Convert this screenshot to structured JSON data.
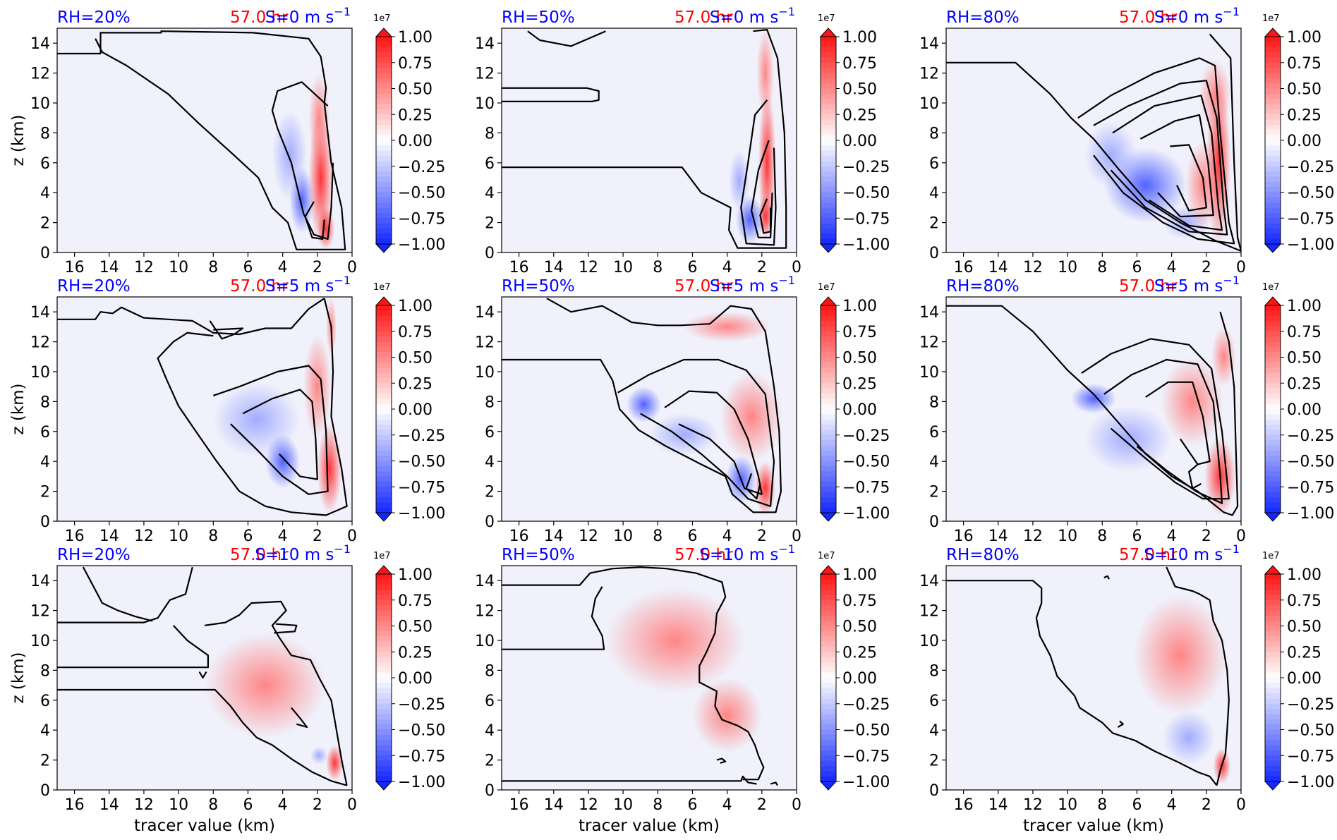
{
  "figure": {
    "type": "panel-grid",
    "time_label": "57.0 hr",
    "x_axis_label": "tracer value (km)",
    "y_axis_label": "z (km)",
    "colorbar_offset": "1e7",
    "colors": {
      "label_blue": "#0000ff",
      "label_red": "#ff0000",
      "background_fill": "#f0f1fb",
      "contour": "#000000"
    }
  },
  "chart_data": [
    {
      "type": "heatmap",
      "row": 0,
      "col": 0,
      "rh": "RH=20%",
      "time": "57.0 hr",
      "shear": "S=0 m s",
      "sup": "−1",
      "xlim": [
        17,
        0
      ],
      "ylim": [
        0,
        15
      ],
      "colorbar_range": [
        -1.0,
        1.0
      ]
    },
    {
      "type": "heatmap",
      "row": 0,
      "col": 1,
      "rh": "RH=50%",
      "time": "57.0 hr",
      "shear": "S=0 m s",
      "sup": "−1",
      "xlim": [
        17,
        0
      ],
      "ylim": [
        0,
        15
      ],
      "colorbar_range": [
        -1.0,
        1.0
      ]
    },
    {
      "type": "heatmap",
      "row": 0,
      "col": 2,
      "rh": "RH=80%",
      "time": "57.0 hr",
      "shear": "S=0 m s",
      "sup": "−1",
      "xlim": [
        17,
        0
      ],
      "ylim": [
        0,
        15
      ],
      "colorbar_range": [
        -1.0,
        1.0
      ]
    },
    {
      "type": "heatmap",
      "row": 1,
      "col": 0,
      "rh": "RH=20%",
      "time": "57.0 hr",
      "shear": "S=5 m s",
      "sup": "−1",
      "xlim": [
        17,
        0
      ],
      "ylim": [
        0,
        15
      ],
      "colorbar_range": [
        -1.0,
        1.0
      ]
    },
    {
      "type": "heatmap",
      "row": 1,
      "col": 1,
      "rh": "RH=50%",
      "time": "57.0 hr",
      "shear": "S=5 m s",
      "sup": "−1",
      "xlim": [
        17,
        0
      ],
      "ylim": [
        0,
        15
      ],
      "colorbar_range": [
        -1.0,
        1.0
      ]
    },
    {
      "type": "heatmap",
      "row": 1,
      "col": 2,
      "rh": "RH=80%",
      "time": "57.0 hr",
      "shear": "S=5 m s",
      "sup": "−1",
      "xlim": [
        17,
        0
      ],
      "ylim": [
        0,
        15
      ],
      "colorbar_range": [
        -1.0,
        1.0
      ]
    },
    {
      "type": "heatmap",
      "row": 2,
      "col": 0,
      "rh": "RH=20%",
      "time": "57.0 hr",
      "shear": "S=10 m s",
      "sup": "−1",
      "xlim": [
        17,
        0
      ],
      "ylim": [
        0,
        15
      ],
      "colorbar_range": [
        -1.0,
        1.0
      ]
    },
    {
      "type": "heatmap",
      "row": 2,
      "col": 1,
      "rh": "RH=50%",
      "time": "57.0 hr",
      "shear": "S=10 m s",
      "sup": "−1",
      "xlim": [
        17,
        0
      ],
      "ylim": [
        0,
        15
      ],
      "colorbar_range": [
        -1.0,
        1.0
      ]
    },
    {
      "type": "heatmap",
      "row": 2,
      "col": 2,
      "rh": "RH=80%",
      "time": "57.0 hr",
      "shear": "S=10 m s",
      "sup": "−1",
      "xlim": [
        17,
        0
      ],
      "ylim": [
        0,
        15
      ],
      "colorbar_range": [
        -1.0,
        1.0
      ]
    }
  ],
  "x_ticks": [
    16,
    14,
    12,
    10,
    8,
    6,
    4,
    2,
    0
  ],
  "y_ticks": [
    0,
    2,
    4,
    6,
    8,
    10,
    12,
    14
  ],
  "colorbar_ticks": [
    "1.00",
    "0.75",
    "0.50",
    "0.25",
    "0.00",
    "−0.25",
    "−0.50",
    "−0.75",
    "−1.00"
  ]
}
